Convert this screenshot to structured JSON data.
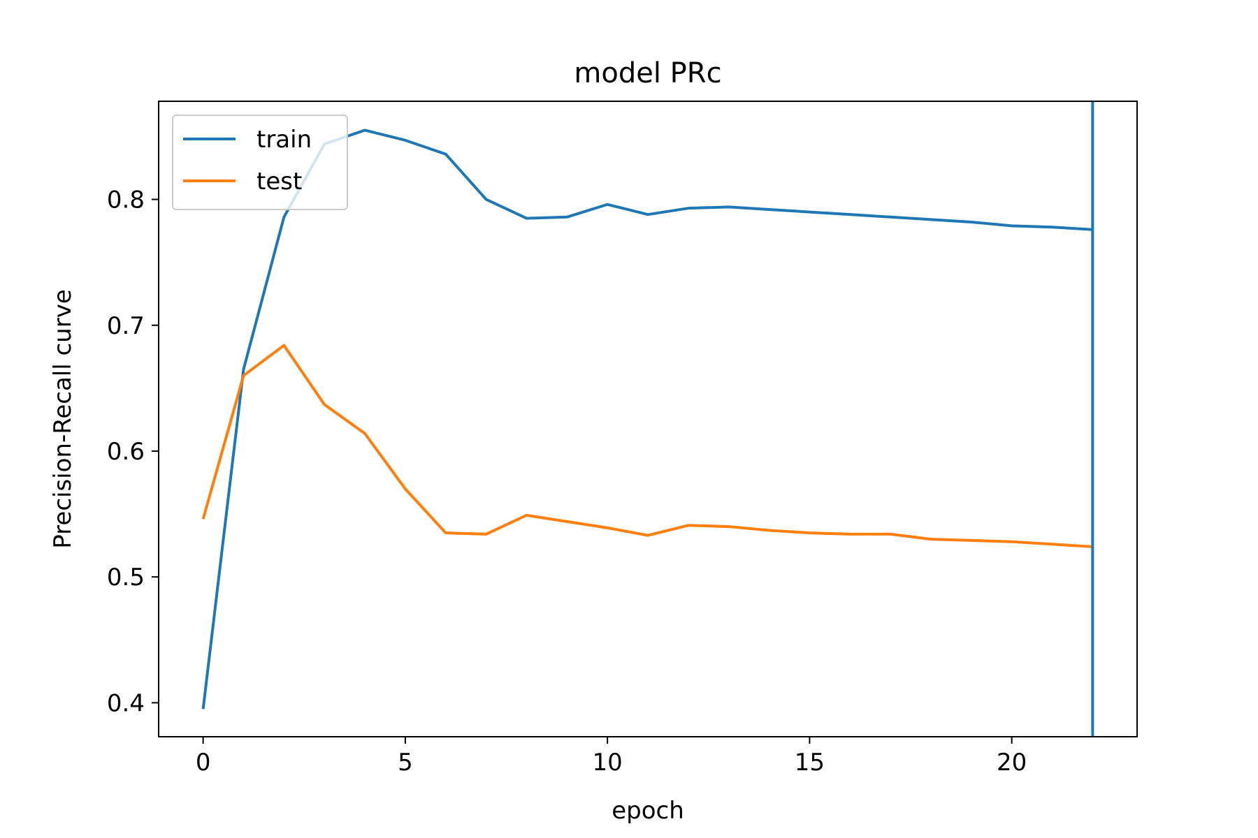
{
  "chart_data": {
    "type": "line",
    "title": "model PRc",
    "xlabel": "epoch",
    "ylabel": "Precision-Recall curve",
    "xlim": [
      -1.1,
      23.1
    ],
    "ylim": [
      0.373,
      0.878
    ],
    "xticks": [
      0,
      5,
      10,
      15,
      20
    ],
    "yticks": [
      0.4,
      0.5,
      0.6,
      0.7,
      0.8
    ],
    "xtick_labels": [
      "0",
      "5",
      "10",
      "15",
      "20"
    ],
    "ytick_labels": [
      "0.4",
      "0.5",
      "0.6",
      "0.7",
      "0.8"
    ],
    "grid": false,
    "legend": {
      "position": "top-left"
    },
    "x": [
      0,
      1,
      2,
      3,
      4,
      5,
      6,
      7,
      8,
      9,
      10,
      11,
      12,
      13,
      14,
      15,
      16,
      17,
      18,
      19,
      20,
      21,
      22
    ],
    "series": [
      {
        "name": "train",
        "color": "#1f77b4",
        "values": [
          0.395,
          0.665,
          0.786,
          0.844,
          0.855,
          0.847,
          0.836,
          0.8,
          0.785,
          0.786,
          0.796,
          0.788,
          0.793,
          0.794,
          0.792,
          0.79,
          0.788,
          0.786,
          0.784,
          0.782,
          0.779,
          0.778,
          0.776
        ]
      },
      {
        "name": "test",
        "color": "#ff7f0e",
        "values": [
          0.546,
          0.66,
          0.684,
          0.637,
          0.614,
          0.57,
          0.535,
          0.534,
          0.549,
          0.544,
          0.539,
          0.533,
          0.541,
          0.54,
          0.537,
          0.535,
          0.534,
          0.534,
          0.53,
          0.529,
          0.528,
          0.526,
          0.524
        ]
      }
    ],
    "vlines": [
      {
        "x": 22,
        "color": "#1f77b4"
      }
    ]
  }
}
